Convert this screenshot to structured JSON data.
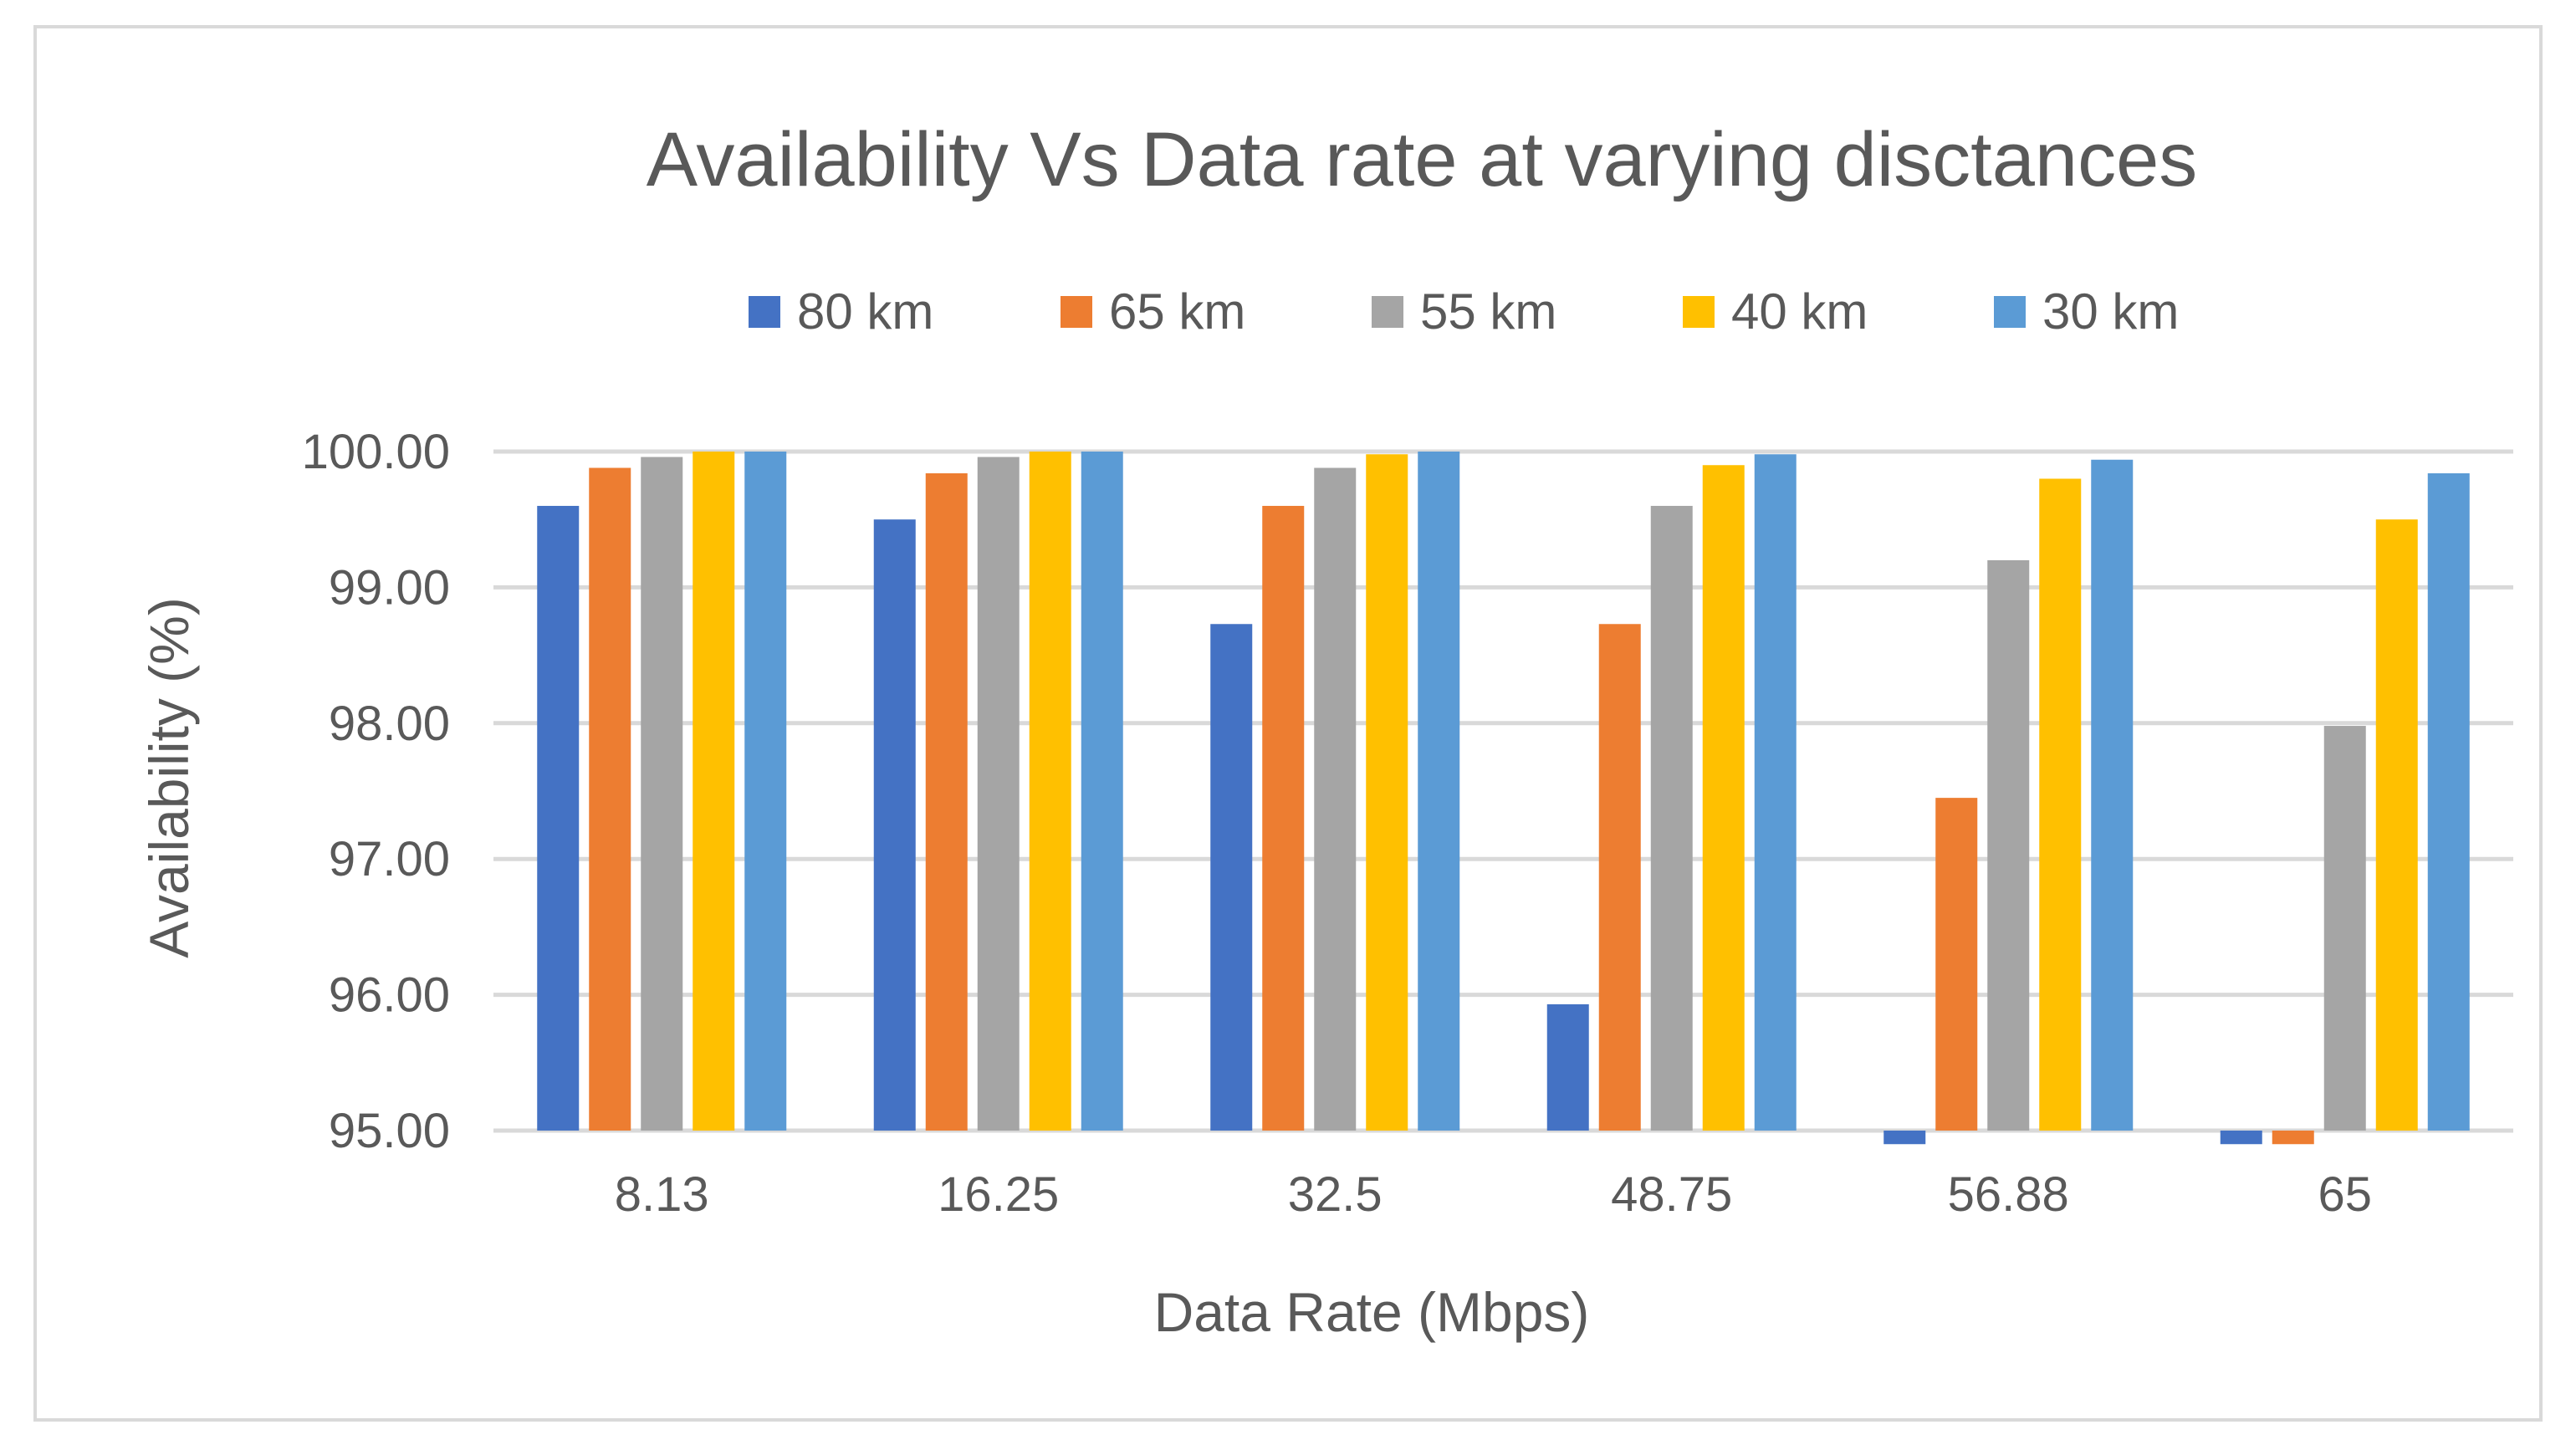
{
  "chart_data": {
    "type": "bar",
    "title": "Availability Vs Data rate at varying disctances",
    "xlabel": "Data Rate (Mbps)",
    "ylabel": "Availability (%)",
    "ylim": [
      95,
      100
    ],
    "yticks": [
      "95.00",
      "96.00",
      "97.00",
      "98.00",
      "99.00",
      "100.00"
    ],
    "grid": true,
    "legend_position": "top",
    "categories": [
      "8.13",
      "16.25",
      "32.5",
      "48.75",
      "56.88",
      "65"
    ],
    "series": [
      {
        "name": "80 km",
        "color": "#4472c4",
        "values": [
          99.6,
          99.5,
          98.73,
          95.93,
          94.9,
          94.9
        ]
      },
      {
        "name": "65 km",
        "color": "#ed7d31",
        "values": [
          99.88,
          99.84,
          99.6,
          98.73,
          97.45,
          94.9
        ]
      },
      {
        "name": "55 km",
        "color": "#a5a5a5",
        "values": [
          99.96,
          99.96,
          99.88,
          99.6,
          99.2,
          97.98
        ]
      },
      {
        "name": "40 km",
        "color": "#ffc000",
        "values": [
          100.0,
          100.0,
          99.98,
          99.9,
          99.8,
          99.5
        ]
      },
      {
        "name": "30 km",
        "color": "#5b9bd5",
        "values": [
          100.0,
          100.0,
          100.0,
          99.98,
          99.94,
          99.84
        ]
      }
    ]
  }
}
